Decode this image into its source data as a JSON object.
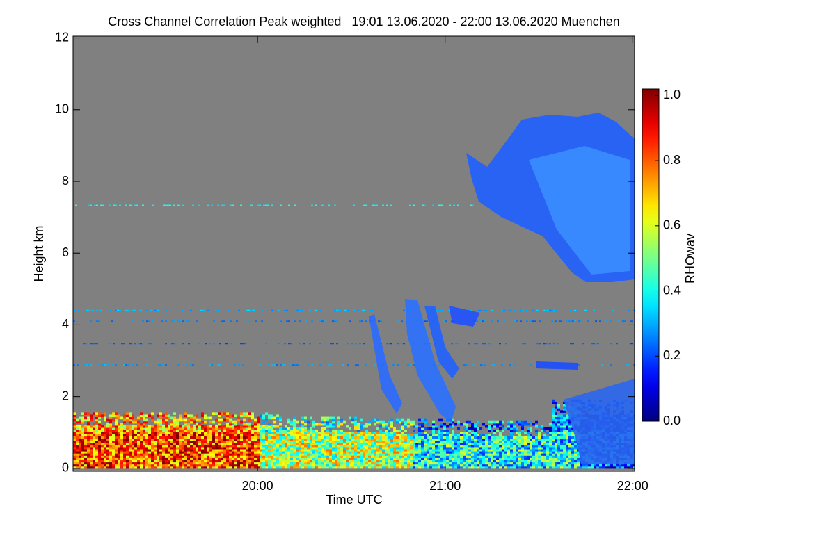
{
  "chart_data": {
    "type": "heatmap",
    "title": "Cross Channel Correlation Peak weighted   19:01 13.06.2020 - 22:00 13.06.2020 Muenchen",
    "x_label": "Time UTC",
    "y_label": "Height km",
    "xlim": [
      19.0167,
      22.01
    ],
    "xticks": [
      {
        "value": 20,
        "label": "20:00"
      },
      {
        "value": 21,
        "label": "21:00"
      },
      {
        "value": 22,
        "label": "22:00"
      }
    ],
    "ylim": [
      -0.08,
      12.05
    ],
    "yticks": [
      0,
      2,
      4,
      6,
      8,
      10,
      12
    ],
    "colorbar": {
      "label": "RHOwav",
      "colormap": "jet",
      "lim": [
        0,
        1.02
      ],
      "ticks": [
        {
          "value": 0,
          "label": "0.0"
        },
        {
          "value": 0.2,
          "label": "0.2"
        },
        {
          "value": 0.4,
          "label": "0.4"
        },
        {
          "value": 0.6,
          "label": "0.6"
        },
        {
          "value": 0.8,
          "label": "0.8"
        },
        {
          "value": 1,
          "label": "1.0"
        }
      ]
    },
    "background_color": "#808080"
  }
}
